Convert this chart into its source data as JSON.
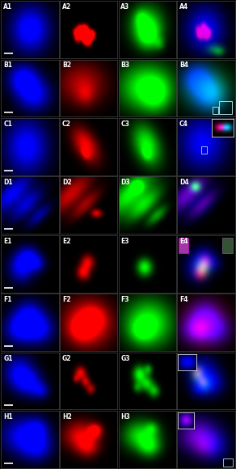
{
  "rows": [
    "A",
    "B",
    "C",
    "D",
    "E",
    "F",
    "G",
    "H"
  ],
  "cols": [
    "1",
    "2",
    "3",
    "4"
  ],
  "n_rows": 8,
  "n_cols": 4,
  "bg_color": "#000000",
  "grid_line_color": "#444444",
  "label_color": "#ffffff",
  "label_fontsize": 5.5,
  "figure_width": 2.92,
  "figure_height": 5.8,
  "dpi": 100
}
